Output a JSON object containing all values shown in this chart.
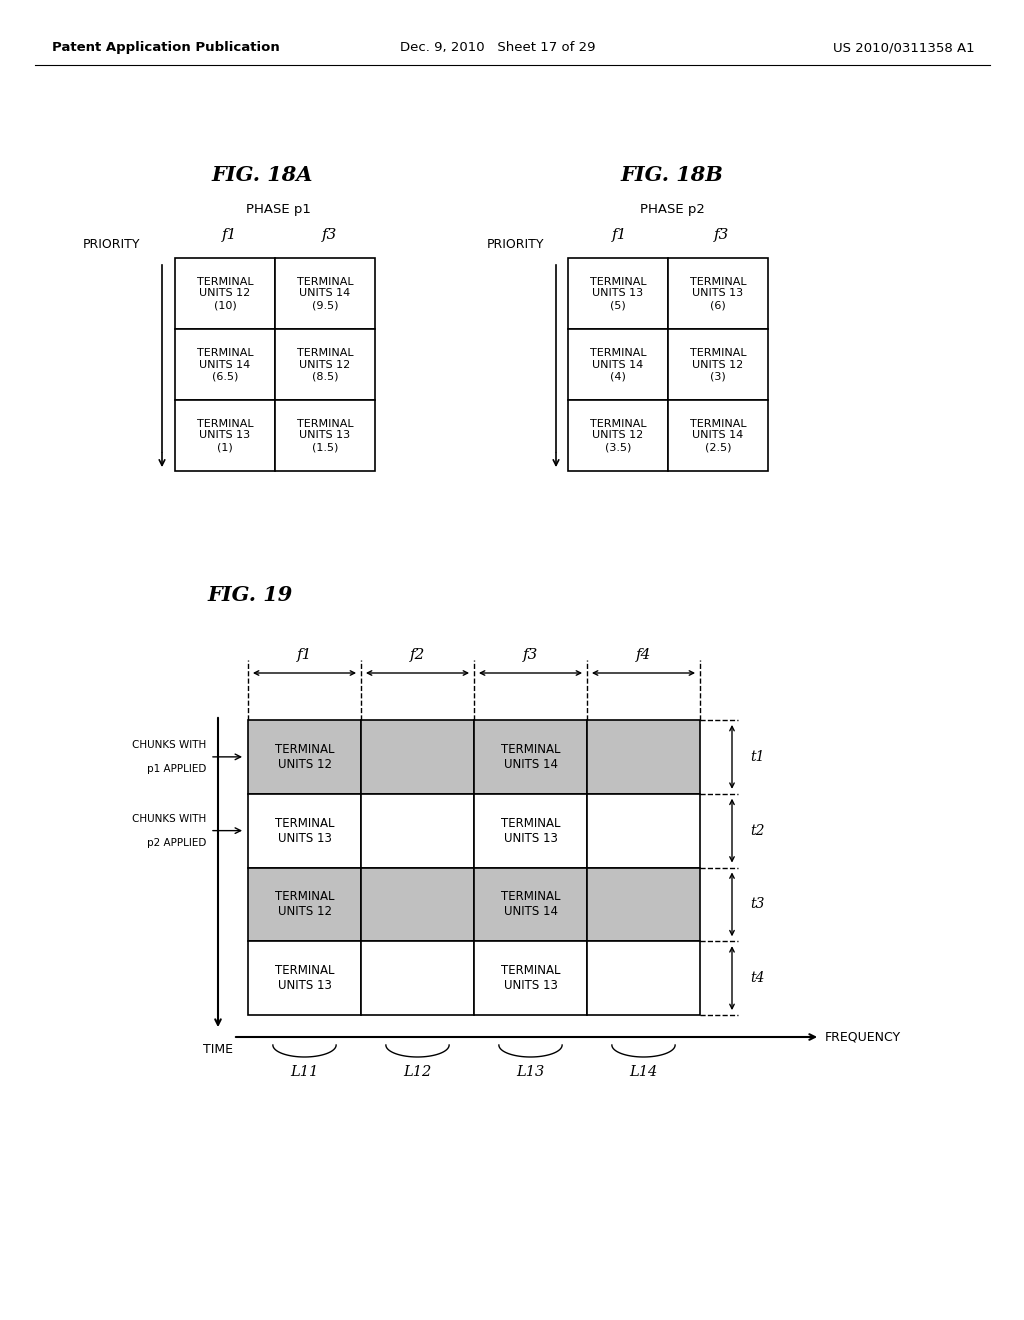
{
  "header_left": "Patent Application Publication",
  "header_mid": "Dec. 9, 2010   Sheet 17 of 29",
  "header_right": "US 2010/0311358 A1",
  "fig18a_title": "FIG. 18A",
  "fig18b_title": "FIG. 18B",
  "fig19_title": "FIG. 19",
  "phase1_label": "PHASE p1",
  "phase2_label": "PHASE p2",
  "priority_label": "PRIORITY",
  "fig18a_col_labels": [
    "f1",
    "f3"
  ],
  "fig18b_col_labels": [
    "f1",
    "f3"
  ],
  "fig18a_cells": [
    [
      "TERMINAL\nUNITS 12\n(10)",
      "TERMINAL\nUNITS 14\n(9.5)"
    ],
    [
      "TERMINAL\nUNITS 14\n(6.5)",
      "TERMINAL\nUNITS 12\n(8.5)"
    ],
    [
      "TERMINAL\nUNITS 13\n(1)",
      "TERMINAL\nUNITS 13\n(1.5)"
    ]
  ],
  "fig18b_cells": [
    [
      "TERMINAL\nUNITS 13\n(5)",
      "TERMINAL\nUNITS 13\n(6)"
    ],
    [
      "TERMINAL\nUNITS 14\n(4)",
      "TERMINAL\nUNITS 12\n(3)"
    ],
    [
      "TERMINAL\nUNITS 12\n(3.5)",
      "TERMINAL\nUNITS 14\n(2.5)"
    ]
  ],
  "fig19_freq_labels": [
    "f1",
    "f2",
    "f3",
    "f4"
  ],
  "fig19_time_labels": [
    "t1",
    "t2",
    "t3",
    "t4"
  ],
  "fig19_x_labels": [
    "L11",
    "L12",
    "L13",
    "L14"
  ],
  "fig19_xlabel": "FREQUENCY",
  "fig19_ylabel": "TIME",
  "shaded_color": "#c0c0c0",
  "white_color": "#ffffff",
  "background_color": "#ffffff",
  "text_color": "#000000"
}
